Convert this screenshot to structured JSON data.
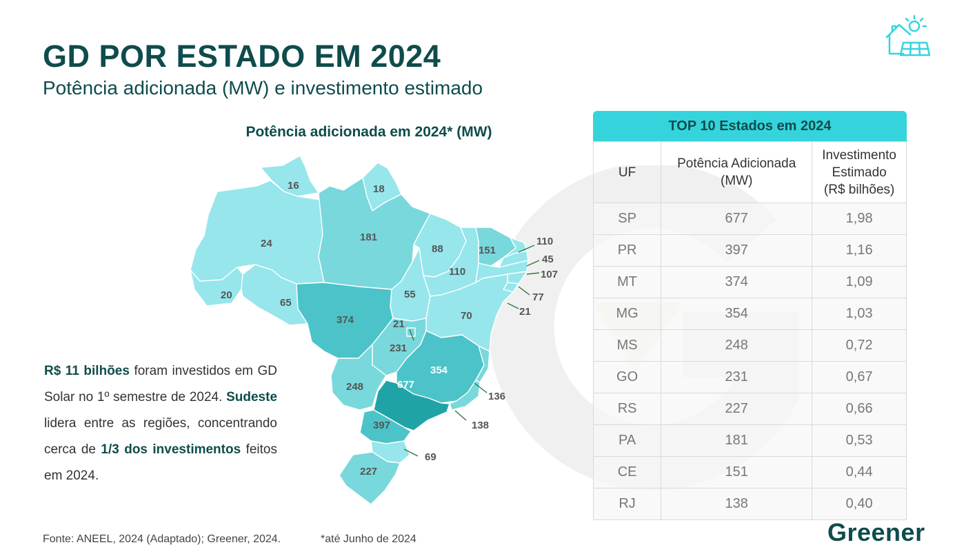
{
  "header": {
    "title": "GD POR ESTADO EM 2024",
    "subtitle": "Potência adicionada (MW) e investimento estimado"
  },
  "map": {
    "title": "Potência adicionada em 2024* (MW)",
    "labels": {
      "RR": "16",
      "AP": "18",
      "AM": "24",
      "PA": "181",
      "MA": "88",
      "CE": "151",
      "RN": "110",
      "PB": "45",
      "PE": "107",
      "AL": "77",
      "SE": "21",
      "PI": "110",
      "TO": "55",
      "AC": "20",
      "RO": "65",
      "MT": "374",
      "BA": "70",
      "DF": "21",
      "GO": "231",
      "MG": "354",
      "ES": "136",
      "MS": "248",
      "SP": "677",
      "RJ": "138",
      "PR": "397",
      "SC": "69",
      "RS": "227"
    }
  },
  "summary": {
    "part1_bold": "R$ 11 bilhões",
    "part1_rest": " foram investidos em GD Solar no 1º semestre de 2024.",
    "part2_bold": "Sudeste",
    "part2_rest": " lidera entre as regiões, concentrando cerca de ",
    "part3_bold": "1/3 dos investimentos",
    "part3_rest": " feitos em 2024."
  },
  "table": {
    "header": "TOP 10 Estados em 2024",
    "columns": [
      "UF",
      "Potência Adicionada (MW)",
      "Investimento Estimado (R$ bilhões)"
    ],
    "rows": [
      [
        "SP",
        "677",
        "1,98"
      ],
      [
        "PR",
        "397",
        "1,16"
      ],
      [
        "MT",
        "374",
        "1,09"
      ],
      [
        "MG",
        "354",
        "1,03"
      ],
      [
        "MS",
        "248",
        "0,72"
      ],
      [
        "GO",
        "231",
        "0,67"
      ],
      [
        "RS",
        "227",
        "0,66"
      ],
      [
        "PA",
        "181",
        "0,53"
      ],
      [
        "CE",
        "151",
        "0,44"
      ],
      [
        "RJ",
        "138",
        "0,40"
      ]
    ]
  },
  "footer": {
    "source": "Fonte: ANEEL, 2024 (Adaptado); Greener, 2024.",
    "note": "*até Junho de 2024",
    "brand": "Greener"
  },
  "colors": {
    "accent": "#35d4dc",
    "title": "#0f4c4c",
    "map_light": "#96e6ec",
    "map_mid": "#78d8dc",
    "map_dark": "#4cc3c8",
    "map_darkest": "#1fa3a6"
  },
  "icons": [
    "solar-house-icon",
    "greener-g-watermark"
  ]
}
